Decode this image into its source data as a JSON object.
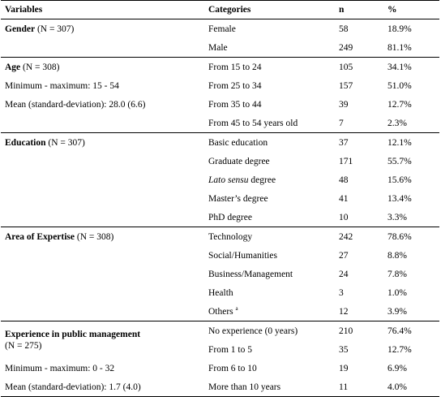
{
  "table": {
    "headers": {
      "variables": "Variables",
      "categories": "Categories",
      "n": "n",
      "pct": "%"
    },
    "gender": {
      "label": "Gender",
      "count": " (N = 307)",
      "rows": [
        {
          "cat": "Female",
          "n": "58",
          "pct": "18.9%"
        },
        {
          "cat": "Male",
          "n": "249",
          "pct": "81.1%"
        }
      ]
    },
    "age": {
      "label": "Age",
      "count": " (N = 308)",
      "minmax": "Minimum - maximum: 15 - 54",
      "mean": "Mean (standard-deviation): 28.0 (6.6)",
      "rows": [
        {
          "cat": "From 15 to 24",
          "n": "105",
          "pct": "34.1%"
        },
        {
          "cat": "From 25 to 34",
          "n": "157",
          "pct": "51.0%"
        },
        {
          "cat": "From 35 to 44",
          "n": "39",
          "pct": "12.7%"
        },
        {
          "cat": "From 45 to 54 years old",
          "n": "7",
          "pct": "2.3%"
        }
      ]
    },
    "education": {
      "label": "Education",
      "count": " (N = 307)",
      "rows": [
        {
          "cat": "Basic education",
          "n": "37",
          "pct": "12.1%"
        },
        {
          "cat": "Graduate degree",
          "n": "171",
          "pct": "55.7%"
        },
        {
          "cat_italic": "Lato sensu",
          "cat_rest": " degree",
          "n": "48",
          "pct": "15.6%"
        },
        {
          "cat": "Master’s degree",
          "n": "41",
          "pct": "13.4%"
        },
        {
          "cat": "PhD degree",
          "n": "10",
          "pct": "3.3%"
        }
      ]
    },
    "expertise": {
      "label": "Area of Expertise",
      "count": " (N = 308)",
      "rows": [
        {
          "cat": "Technology",
          "n": "242",
          "pct": "78.6%"
        },
        {
          "cat": "Social/Humanities",
          "n": "27",
          "pct": "8.8%"
        },
        {
          "cat": "Business/Management",
          "n": "24",
          "pct": "7.8%"
        },
        {
          "cat": "Health",
          "n": "3",
          "pct": "1.0%"
        },
        {
          "cat": "Others",
          "sup": "a",
          "n": "12",
          "pct": "3.9%"
        }
      ]
    },
    "experience": {
      "label": "Experience in public management",
      "count": "(N = 275)",
      "minmax": "Minimum - maximum: 0 - 32",
      "mean": "Mean (standard-deviation): 1.7 (4.0)",
      "rows": [
        {
          "cat": "No experience (0 years)",
          "n": "210",
          "pct": "76.4%"
        },
        {
          "cat": "From 1 to 5",
          "n": "35",
          "pct": "12.7%"
        },
        {
          "cat": "From 6 to 10",
          "n": "19",
          "pct": "6.9%"
        },
        {
          "cat": "More than 10 years",
          "n": "11",
          "pct": "4.0%"
        }
      ]
    }
  }
}
